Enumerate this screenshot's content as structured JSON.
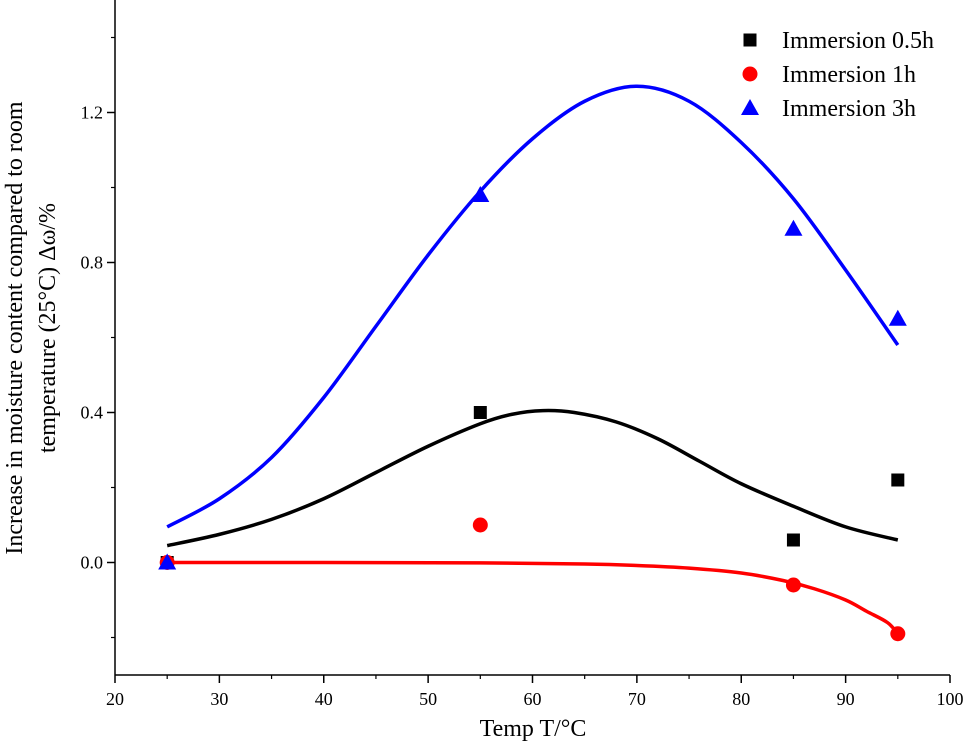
{
  "chart_data": {
    "type": "scatter",
    "xlabel": "Temp T/°C",
    "ylabel_lines": [
      "Increase in moisture content compared to room",
      "temperature (25°C) Δω/%"
    ],
    "xlim": [
      20,
      100
    ],
    "ylim": [
      -0.3,
      1.5
    ],
    "x_ticks": [
      20,
      30,
      40,
      50,
      60,
      70,
      80,
      90,
      100
    ],
    "y_ticks": [
      0.0,
      0.4,
      0.8,
      1.2
    ],
    "y_tick_labels": [
      "0.0",
      "0.4",
      "0.8",
      "1.2"
    ],
    "grid": false,
    "legend_position": "top-right",
    "series": [
      {
        "name": "Immersion 0.5h",
        "marker": "square",
        "color": "#000000",
        "points": [
          [
            25,
            0.0
          ],
          [
            55,
            0.4
          ],
          [
            85,
            0.06
          ],
          [
            95,
            0.22
          ]
        ],
        "fit": [
          [
            25,
            0.045
          ],
          [
            30,
            0.075
          ],
          [
            35,
            0.115
          ],
          [
            40,
            0.17
          ],
          [
            45,
            0.24
          ],
          [
            50,
            0.31
          ],
          [
            55,
            0.37
          ],
          [
            58,
            0.395
          ],
          [
            61,
            0.405
          ],
          [
            64,
            0.4
          ],
          [
            68,
            0.375
          ],
          [
            72,
            0.33
          ],
          [
            76,
            0.27
          ],
          [
            80,
            0.21
          ],
          [
            85,
            0.15
          ],
          [
            90,
            0.095
          ],
          [
            95,
            0.06
          ]
        ]
      },
      {
        "name": "Immersion 1h",
        "marker": "circle",
        "color": "#ff0000",
        "points": [
          [
            25,
            0.0
          ],
          [
            55,
            0.1
          ],
          [
            85,
            -0.06
          ],
          [
            95,
            -0.19
          ]
        ],
        "fit": [
          [
            25,
            0.0
          ],
          [
            40,
            0.0
          ],
          [
            55,
            -0.001
          ],
          [
            65,
            -0.004
          ],
          [
            70,
            -0.008
          ],
          [
            75,
            -0.015
          ],
          [
            80,
            -0.028
          ],
          [
            84,
            -0.048
          ],
          [
            87,
            -0.07
          ],
          [
            90,
            -0.1
          ],
          [
            92,
            -0.13
          ],
          [
            94,
            -0.16
          ],
          [
            95,
            -0.19
          ]
        ]
      },
      {
        "name": "Immersion 3h",
        "marker": "triangle",
        "color": "#0000ff",
        "points": [
          [
            25,
            0.0
          ],
          [
            55,
            0.98
          ],
          [
            85,
            0.89
          ],
          [
            95,
            0.65
          ]
        ],
        "fit": [
          [
            25,
            0.095
          ],
          [
            30,
            0.17
          ],
          [
            35,
            0.28
          ],
          [
            40,
            0.44
          ],
          [
            45,
            0.63
          ],
          [
            50,
            0.82
          ],
          [
            55,
            0.99
          ],
          [
            60,
            1.13
          ],
          [
            65,
            1.23
          ],
          [
            70,
            1.27
          ],
          [
            75,
            1.23
          ],
          [
            80,
            1.12
          ],
          [
            85,
            0.97
          ],
          [
            90,
            0.78
          ],
          [
            95,
            0.58
          ]
        ]
      }
    ]
  }
}
